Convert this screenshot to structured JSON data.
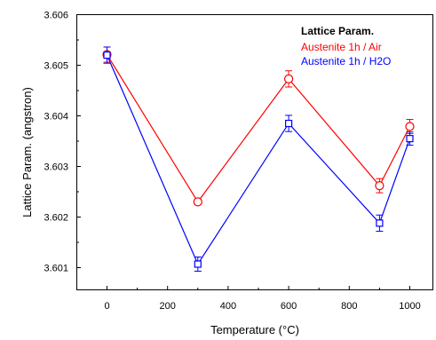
{
  "chart_data": {
    "type": "line",
    "xlabel": "Temperature (°C)",
    "ylabel": "Lattice Param. (angstron)",
    "xlim": [
      -100,
      1050
    ],
    "ylim": [
      3.6006,
      3.606
    ],
    "x_ticks": [
      0,
      200,
      400,
      600,
      800,
      1000
    ],
    "x_tick_labels": [
      "0",
      "200",
      "400",
      "600",
      "800",
      "1000"
    ],
    "y_ticks": [
      3.601,
      3.602,
      3.603,
      3.604,
      3.605,
      3.606
    ],
    "y_tick_labels": [
      "3.601",
      "3.602",
      "3.603",
      "3.604",
      "3.605",
      "3.606"
    ],
    "grid": false,
    "legend": {
      "title": "Lattice Param.",
      "placement": "top-right"
    },
    "series": [
      {
        "name": "Austenite 1h / Air",
        "color": "#ff0000",
        "marker": "circle",
        "x": [
          0,
          300,
          600,
          900,
          1000
        ],
        "y": [
          3.60521,
          3.6023,
          3.60473,
          3.60262,
          3.60379
        ],
        "err": [
          0.00015,
          5e-05,
          0.00016,
          0.00014,
          0.00014
        ]
      },
      {
        "name": "Austenite 1h / H2O",
        "color": "#0000ff",
        "marker": "square",
        "x": [
          0,
          300,
          600,
          900,
          1000
        ],
        "y": [
          3.6052,
          3.60107,
          3.60385,
          3.60188,
          3.60355
        ],
        "err": [
          0.00016,
          0.00014,
          0.00016,
          0.00016,
          0.00013
        ]
      }
    ]
  }
}
